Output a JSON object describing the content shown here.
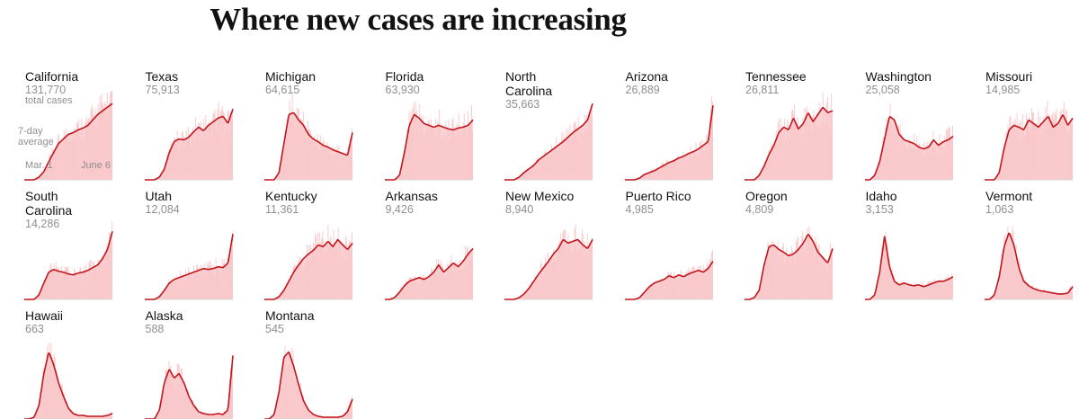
{
  "title": "Where new cases are increasing",
  "colors": {
    "bars": "#f9c7c9",
    "line": "#c3151b",
    "text": "#121212",
    "muted": "#8f8f8f"
  },
  "annotations": {
    "total_cases": "total cases",
    "seven_day": "7-day",
    "average": "average",
    "x_start": "Mar. 1",
    "x_end": "June 6"
  },
  "chart_data": {
    "type": "small-multiples-area-line",
    "title": "Where new cases are increasing",
    "x_range": [
      "Mar. 1",
      "June 6"
    ],
    "series_note": "daily new cases (bars) with 7-day average (line), each panel scaled independently",
    "states": [
      {
        "name": "California",
        "total": "131,770",
        "shape": [
          0,
          0,
          0,
          0.03,
          0.09,
          0.2,
          0.3,
          0.4,
          0.45,
          0.5,
          0.52,
          0.55,
          0.57,
          0.6,
          0.66,
          0.72,
          0.76,
          0.8,
          0.84
        ]
      },
      {
        "name": "Texas",
        "total": "75,913",
        "shape": [
          0,
          0,
          0,
          0.03,
          0.12,
          0.3,
          0.42,
          0.45,
          0.44,
          0.47,
          0.53,
          0.58,
          0.54,
          0.6,
          0.64,
          0.68,
          0.7,
          0.62,
          0.78
        ]
      },
      {
        "name": "Michigan",
        "total": "64,615",
        "shape": [
          0,
          0,
          0,
          0.08,
          0.4,
          0.72,
          0.74,
          0.66,
          0.6,
          0.5,
          0.45,
          0.42,
          0.38,
          0.36,
          0.33,
          0.31,
          0.29,
          0.27,
          0.52
        ]
      },
      {
        "name": "Florida",
        "total": "63,930",
        "shape": [
          0,
          0,
          0,
          0.05,
          0.3,
          0.6,
          0.72,
          0.68,
          0.62,
          0.6,
          0.58,
          0.6,
          0.58,
          0.56,
          0.55,
          0.57,
          0.58,
          0.6,
          0.66
        ]
      },
      {
        "name": "North Carolina",
        "total": "35,663",
        "shape": [
          0,
          0,
          0,
          0.03,
          0.08,
          0.12,
          0.16,
          0.22,
          0.26,
          0.3,
          0.34,
          0.38,
          0.42,
          0.47,
          0.52,
          0.56,
          0.6,
          0.66,
          0.84
        ]
      },
      {
        "name": "Arizona",
        "total": "26,889",
        "shape": [
          0,
          0,
          0,
          0.02,
          0.06,
          0.08,
          0.1,
          0.13,
          0.16,
          0.19,
          0.21,
          0.24,
          0.26,
          0.29,
          0.31,
          0.34,
          0.38,
          0.42,
          0.82
        ]
      },
      {
        "name": "Tennessee",
        "total": "26,811",
        "shape": [
          0,
          0,
          0,
          0.05,
          0.15,
          0.28,
          0.38,
          0.52,
          0.58,
          0.55,
          0.68,
          0.56,
          0.62,
          0.74,
          0.64,
          0.72,
          0.8,
          0.74,
          0.76
        ]
      },
      {
        "name": "Washington",
        "total": "25,058",
        "shape": [
          0,
          0,
          0.05,
          0.2,
          0.45,
          0.7,
          0.66,
          0.5,
          0.44,
          0.42,
          0.4,
          0.36,
          0.34,
          0.36,
          0.44,
          0.38,
          0.42,
          0.44,
          0.48
        ]
      },
      {
        "name": "Missouri",
        "total": "14,985",
        "shape": [
          0,
          0,
          0,
          0.08,
          0.35,
          0.55,
          0.6,
          0.58,
          0.55,
          0.66,
          0.62,
          0.58,
          0.64,
          0.7,
          0.58,
          0.62,
          0.72,
          0.6,
          0.68
        ]
      },
      {
        "name": "South Carolina",
        "total": "14,286",
        "shape": [
          0,
          0,
          0,
          0.05,
          0.18,
          0.3,
          0.33,
          0.31,
          0.3,
          0.28,
          0.27,
          0.29,
          0.3,
          0.32,
          0.35,
          0.38,
          0.45,
          0.55,
          0.75
        ]
      },
      {
        "name": "Utah",
        "total": "12,084",
        "shape": [
          0,
          0,
          0,
          0.03,
          0.1,
          0.18,
          0.22,
          0.24,
          0.26,
          0.28,
          0.3,
          0.32,
          0.34,
          0.33,
          0.34,
          0.36,
          0.35,
          0.4,
          0.72
        ]
      },
      {
        "name": "Kentucky",
        "total": "11,361",
        "shape": [
          0,
          0,
          0,
          0.03,
          0.1,
          0.2,
          0.3,
          0.38,
          0.45,
          0.5,
          0.54,
          0.6,
          0.58,
          0.64,
          0.58,
          0.66,
          0.6,
          0.55,
          0.62
        ]
      },
      {
        "name": "Arkansas",
        "total": "9,426",
        "shape": [
          0,
          0,
          0.02,
          0.08,
          0.15,
          0.2,
          0.22,
          0.24,
          0.22,
          0.25,
          0.3,
          0.38,
          0.3,
          0.35,
          0.4,
          0.36,
          0.42,
          0.5,
          0.56
        ]
      },
      {
        "name": "New Mexico",
        "total": "8,940",
        "shape": [
          0,
          0,
          0,
          0.02,
          0.06,
          0.12,
          0.2,
          0.28,
          0.35,
          0.42,
          0.5,
          0.56,
          0.66,
          0.62,
          0.64,
          0.66,
          0.6,
          0.56,
          0.66
        ]
      },
      {
        "name": "Puerto Rico",
        "total": "4,985",
        "shape": [
          0,
          0,
          0,
          0.02,
          0.08,
          0.14,
          0.18,
          0.2,
          0.22,
          0.26,
          0.24,
          0.27,
          0.25,
          0.28,
          0.3,
          0.32,
          0.3,
          0.34,
          0.42
        ]
      },
      {
        "name": "Oregon",
        "total": "4,809",
        "shape": [
          0,
          0,
          0.02,
          0.1,
          0.38,
          0.58,
          0.6,
          0.55,
          0.52,
          0.48,
          0.5,
          0.55,
          0.62,
          0.72,
          0.64,
          0.52,
          0.46,
          0.4,
          0.56
        ]
      },
      {
        "name": "Idaho",
        "total": "3,153",
        "shape": [
          0,
          0,
          0.05,
          0.3,
          0.7,
          0.36,
          0.2,
          0.16,
          0.18,
          0.16,
          0.15,
          0.16,
          0.14,
          0.16,
          0.18,
          0.2,
          0.2,
          0.22,
          0.25
        ]
      },
      {
        "name": "Vermont",
        "total": "1,063",
        "shape": [
          0,
          0,
          0.05,
          0.25,
          0.58,
          0.74,
          0.6,
          0.35,
          0.2,
          0.15,
          0.12,
          0.1,
          0.09,
          0.08,
          0.07,
          0.06,
          0.06,
          0.07,
          0.14
        ]
      },
      {
        "name": "Hawaii",
        "total": "663",
        "shape": [
          0,
          0,
          0.02,
          0.15,
          0.5,
          0.74,
          0.6,
          0.4,
          0.25,
          0.12,
          0.06,
          0.04,
          0.04,
          0.03,
          0.03,
          0.03,
          0.03,
          0.04,
          0.06
        ]
      },
      {
        "name": "Alaska",
        "total": "588",
        "shape": [
          0,
          0,
          0,
          0.1,
          0.4,
          0.55,
          0.45,
          0.5,
          0.4,
          0.25,
          0.15,
          0.08,
          0.06,
          0.05,
          0.05,
          0.06,
          0.05,
          0.1,
          0.7
        ]
      },
      {
        "name": "Montana",
        "total": "545",
        "shape": [
          0,
          0,
          0.05,
          0.3,
          0.68,
          0.74,
          0.58,
          0.38,
          0.2,
          0.1,
          0.05,
          0.03,
          0.02,
          0.02,
          0.02,
          0.02,
          0.03,
          0.08,
          0.22
        ]
      }
    ]
  }
}
